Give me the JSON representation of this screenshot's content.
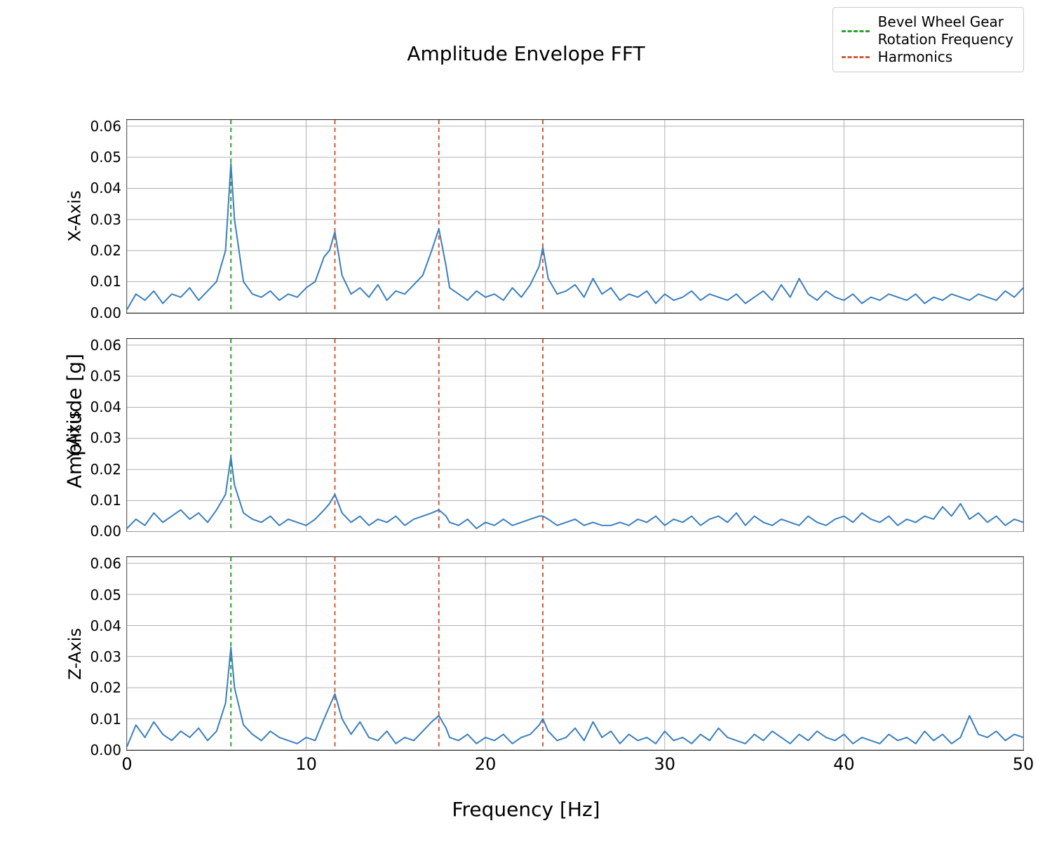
{
  "title": "Amplitude Envelope FFT",
  "xlabel": "Frequency [Hz]",
  "ylabel": "Amplitude [g]",
  "background_color": "#ffffff",
  "legend": {
    "items": [
      {
        "label": "Bevel Wheel Gear\nRotation Frequency",
        "color": "#2ca02c",
        "dash": "6,5"
      },
      {
        "label": "Harmonics",
        "color": "#d75a36",
        "dash": "6,5"
      }
    ],
    "border_color": "#cccccc",
    "fontsize": 20
  },
  "vlines": {
    "fundamental": {
      "x": 5.8,
      "color": "#2ca02c",
      "dash": "6,5",
      "width": 2
    },
    "harmonics": [
      {
        "x": 11.6,
        "color": "#d75a36",
        "dash": "6,5",
        "width": 2
      },
      {
        "x": 17.4,
        "color": "#d75a36",
        "dash": "6,5",
        "width": 2
      },
      {
        "x": 23.2,
        "color": "#d75a36",
        "dash": "6,5",
        "width": 2
      }
    ]
  },
  "axes_common": {
    "xlim": [
      0,
      50
    ],
    "ylim": [
      0,
      0.062
    ],
    "xticks": [
      0,
      10,
      20,
      30,
      40,
      50
    ],
    "yticks": [
      0.0,
      0.01,
      0.02,
      0.03,
      0.04,
      0.05,
      0.06
    ],
    "ytick_labels": [
      "0.00",
      "0.01",
      "0.02",
      "0.03",
      "0.04",
      "0.05",
      "0.06"
    ],
    "xtick_labels": [
      "0",
      "10",
      "20",
      "30",
      "40",
      "50"
    ],
    "grid_color": "#b0b0b0",
    "grid_width": 1,
    "line_color": "#3a7fbf",
    "line_width": 2,
    "spine_color": "#222222",
    "spine_width": 1.5,
    "tick_fontsize": 20,
    "label_fontsize": 24
  },
  "panels": [
    {
      "label": "X-Axis",
      "x": [
        0,
        0.5,
        1,
        1.5,
        2,
        2.5,
        3,
        3.5,
        4,
        4.5,
        5,
        5.5,
        5.8,
        6,
        6.5,
        7,
        7.5,
        8,
        8.5,
        9,
        9.5,
        10,
        10.5,
        11,
        11.3,
        11.6,
        12,
        12.5,
        13,
        13.5,
        14,
        14.5,
        15,
        15.5,
        16,
        16.5,
        17,
        17.4,
        17.8,
        18,
        18.5,
        19,
        19.5,
        20,
        20.5,
        21,
        21.5,
        22,
        22.5,
        23,
        23.2,
        23.5,
        24,
        24.5,
        25,
        25.5,
        26,
        26.5,
        27,
        27.5,
        28,
        28.5,
        29,
        29.5,
        30,
        30.5,
        31,
        31.5,
        32,
        32.5,
        33,
        33.5,
        34,
        34.5,
        35,
        35.5,
        36,
        36.5,
        37,
        37.5,
        38,
        38.5,
        39,
        39.5,
        40,
        40.5,
        41,
        41.5,
        42,
        42.5,
        43,
        43.5,
        44,
        44.5,
        45,
        45.5,
        46,
        46.5,
        47,
        47.5,
        48,
        48.5,
        49,
        49.5,
        50
      ],
      "y": [
        0.001,
        0.006,
        0.004,
        0.007,
        0.003,
        0.006,
        0.005,
        0.008,
        0.004,
        0.007,
        0.01,
        0.02,
        0.048,
        0.03,
        0.01,
        0.006,
        0.005,
        0.007,
        0.004,
        0.006,
        0.005,
        0.008,
        0.01,
        0.018,
        0.02,
        0.026,
        0.012,
        0.006,
        0.008,
        0.005,
        0.009,
        0.004,
        0.007,
        0.006,
        0.009,
        0.012,
        0.02,
        0.027,
        0.015,
        0.008,
        0.006,
        0.004,
        0.007,
        0.005,
        0.006,
        0.004,
        0.008,
        0.005,
        0.009,
        0.015,
        0.021,
        0.011,
        0.006,
        0.007,
        0.009,
        0.005,
        0.011,
        0.006,
        0.008,
        0.004,
        0.006,
        0.005,
        0.007,
        0.003,
        0.006,
        0.004,
        0.005,
        0.007,
        0.004,
        0.006,
        0.005,
        0.004,
        0.006,
        0.003,
        0.005,
        0.007,
        0.004,
        0.009,
        0.005,
        0.011,
        0.006,
        0.004,
        0.007,
        0.005,
        0.004,
        0.006,
        0.003,
        0.005,
        0.004,
        0.006,
        0.005,
        0.004,
        0.006,
        0.003,
        0.005,
        0.004,
        0.006,
        0.005,
        0.004,
        0.006,
        0.005,
        0.004,
        0.007,
        0.005,
        0.008
      ]
    },
    {
      "label": "Y-Axis",
      "x": [
        0,
        0.5,
        1,
        1.5,
        2,
        2.5,
        3,
        3.5,
        4,
        4.5,
        5,
        5.5,
        5.8,
        6,
        6.5,
        7,
        7.5,
        8,
        8.5,
        9,
        9.5,
        10,
        10.5,
        11,
        11.3,
        11.6,
        12,
        12.5,
        13,
        13.5,
        14,
        14.5,
        15,
        15.5,
        16,
        16.5,
        17,
        17.4,
        17.8,
        18,
        18.5,
        19,
        19.5,
        20,
        20.5,
        21,
        21.5,
        22,
        22.5,
        23,
        23.2,
        23.5,
        24,
        24.5,
        25,
        25.5,
        26,
        26.5,
        27,
        27.5,
        28,
        28.5,
        29,
        29.5,
        30,
        30.5,
        31,
        31.5,
        32,
        32.5,
        33,
        33.5,
        34,
        34.5,
        35,
        35.5,
        36,
        36.5,
        37,
        37.5,
        38,
        38.5,
        39,
        39.5,
        40,
        40.5,
        41,
        41.5,
        42,
        42.5,
        43,
        43.5,
        44,
        44.5,
        45,
        45.5,
        46,
        46.5,
        47,
        47.5,
        48,
        48.5,
        49,
        49.5,
        50
      ],
      "y": [
        0.001,
        0.004,
        0.002,
        0.006,
        0.003,
        0.005,
        0.007,
        0.004,
        0.006,
        0.003,
        0.007,
        0.012,
        0.024,
        0.015,
        0.006,
        0.004,
        0.003,
        0.005,
        0.002,
        0.004,
        0.003,
        0.002,
        0.004,
        0.007,
        0.009,
        0.012,
        0.006,
        0.003,
        0.005,
        0.002,
        0.004,
        0.003,
        0.005,
        0.002,
        0.004,
        0.005,
        0.006,
        0.007,
        0.005,
        0.003,
        0.002,
        0.004,
        0.001,
        0.003,
        0.002,
        0.004,
        0.002,
        0.003,
        0.004,
        0.005,
        0.005,
        0.004,
        0.002,
        0.003,
        0.004,
        0.002,
        0.003,
        0.002,
        0.002,
        0.003,
        0.002,
        0.004,
        0.003,
        0.005,
        0.002,
        0.004,
        0.003,
        0.005,
        0.002,
        0.004,
        0.005,
        0.003,
        0.006,
        0.002,
        0.005,
        0.003,
        0.002,
        0.004,
        0.003,
        0.002,
        0.005,
        0.003,
        0.002,
        0.004,
        0.005,
        0.003,
        0.006,
        0.004,
        0.003,
        0.005,
        0.002,
        0.004,
        0.003,
        0.005,
        0.004,
        0.008,
        0.005,
        0.009,
        0.004,
        0.006,
        0.003,
        0.005,
        0.002,
        0.004,
        0.003
      ]
    },
    {
      "label": "Z-Axis",
      "x": [
        0,
        0.5,
        1,
        1.5,
        2,
        2.5,
        3,
        3.5,
        4,
        4.5,
        5,
        5.5,
        5.8,
        6,
        6.5,
        7,
        7.5,
        8,
        8.5,
        9,
        9.5,
        10,
        10.5,
        11,
        11.3,
        11.6,
        12,
        12.5,
        13,
        13.5,
        14,
        14.5,
        15,
        15.5,
        16,
        16.5,
        17,
        17.4,
        17.8,
        18,
        18.5,
        19,
        19.5,
        20,
        20.5,
        21,
        21.5,
        22,
        22.5,
        23,
        23.2,
        23.5,
        24,
        24.5,
        25,
        25.5,
        26,
        26.5,
        27,
        27.5,
        28,
        28.5,
        29,
        29.5,
        30,
        30.5,
        31,
        31.5,
        32,
        32.5,
        33,
        33.5,
        34,
        34.5,
        35,
        35.5,
        36,
        36.5,
        37,
        37.5,
        38,
        38.5,
        39,
        39.5,
        40,
        40.5,
        41,
        41.5,
        42,
        42.5,
        43,
        43.5,
        44,
        44.5,
        45,
        45.5,
        46,
        46.5,
        47,
        47.5,
        48,
        48.5,
        49,
        49.5,
        50
      ],
      "y": [
        0.001,
        0.008,
        0.004,
        0.009,
        0.005,
        0.003,
        0.006,
        0.004,
        0.007,
        0.003,
        0.006,
        0.015,
        0.033,
        0.02,
        0.008,
        0.005,
        0.003,
        0.006,
        0.004,
        0.003,
        0.002,
        0.004,
        0.003,
        0.01,
        0.014,
        0.018,
        0.01,
        0.005,
        0.009,
        0.004,
        0.003,
        0.006,
        0.002,
        0.004,
        0.003,
        0.006,
        0.009,
        0.011,
        0.007,
        0.004,
        0.003,
        0.005,
        0.002,
        0.004,
        0.003,
        0.005,
        0.002,
        0.004,
        0.005,
        0.008,
        0.01,
        0.006,
        0.003,
        0.004,
        0.007,
        0.003,
        0.009,
        0.004,
        0.006,
        0.002,
        0.005,
        0.003,
        0.004,
        0.002,
        0.006,
        0.003,
        0.004,
        0.002,
        0.005,
        0.003,
        0.007,
        0.004,
        0.003,
        0.002,
        0.005,
        0.003,
        0.006,
        0.004,
        0.002,
        0.005,
        0.003,
        0.006,
        0.004,
        0.003,
        0.005,
        0.002,
        0.004,
        0.003,
        0.002,
        0.005,
        0.003,
        0.004,
        0.002,
        0.006,
        0.003,
        0.005,
        0.002,
        0.004,
        0.011,
        0.005,
        0.004,
        0.006,
        0.003,
        0.005,
        0.004
      ]
    }
  ]
}
